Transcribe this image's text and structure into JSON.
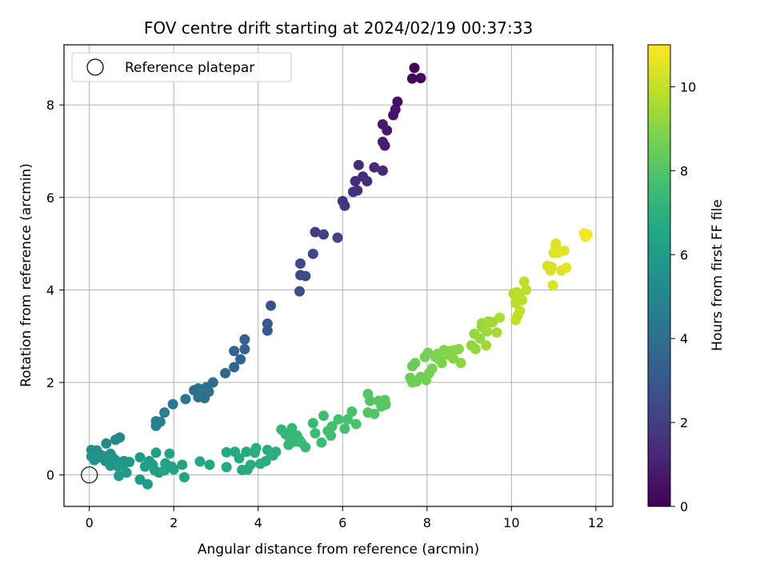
{
  "chart_data": {
    "type": "scatter",
    "title": "FOV centre drift starting at 2024/02/19 00:37:33",
    "xlabel": "Angular distance from reference (arcmin)",
    "ylabel": "Rotation from reference (arcmin)",
    "xlim": [
      -0.6,
      12.4
    ],
    "ylim": [
      -0.68,
      9.3
    ],
    "xticks": [
      "0",
      "2",
      "4",
      "6",
      "8",
      "10",
      "12"
    ],
    "yticks": [
      "0",
      "2",
      "4",
      "6",
      "8"
    ],
    "grid": true,
    "legend": {
      "placement": "top-left",
      "entries": [
        "Reference platepar"
      ]
    },
    "reference_point": {
      "x": 0,
      "y": 0
    },
    "colorbar": {
      "label": "Hours from first FF file",
      "range": [
        0,
        11
      ],
      "ticks": [
        "0",
        "2",
        "4",
        "6",
        "8",
        "10"
      ],
      "colormap": "viridis"
    },
    "points": [
      {
        "x": 7.7,
        "y": 8.8,
        "h": 0.1
      },
      {
        "x": 7.65,
        "y": 8.57,
        "h": 0.15
      },
      {
        "x": 7.85,
        "y": 8.58,
        "h": 0.2
      },
      {
        "x": 7.3,
        "y": 8.07,
        "h": 0.45
      },
      {
        "x": 7.25,
        "y": 7.9,
        "h": 0.55
      },
      {
        "x": 7.2,
        "y": 7.78,
        "h": 0.6
      },
      {
        "x": 6.95,
        "y": 7.58,
        "h": 0.75
      },
      {
        "x": 7.05,
        "y": 7.45,
        "h": 0.8
      },
      {
        "x": 6.95,
        "y": 7.2,
        "h": 0.9
      },
      {
        "x": 7.0,
        "y": 7.12,
        "h": 0.95
      },
      {
        "x": 6.75,
        "y": 6.65,
        "h": 1.2
      },
      {
        "x": 6.95,
        "y": 6.58,
        "h": 1.25
      },
      {
        "x": 6.38,
        "y": 6.7,
        "h": 1.3
      },
      {
        "x": 6.48,
        "y": 6.45,
        "h": 1.35
      },
      {
        "x": 6.3,
        "y": 6.35,
        "h": 1.4
      },
      {
        "x": 6.58,
        "y": 6.35,
        "h": 1.45
      },
      {
        "x": 6.25,
        "y": 6.12,
        "h": 1.5
      },
      {
        "x": 6.35,
        "y": 6.15,
        "h": 1.55
      },
      {
        "x": 6.0,
        "y": 5.92,
        "h": 1.65
      },
      {
        "x": 6.05,
        "y": 5.82,
        "h": 1.7
      },
      {
        "x": 5.35,
        "y": 5.25,
        "h": 2.0
      },
      {
        "x": 5.55,
        "y": 5.2,
        "h": 2.05
      },
      {
        "x": 5.88,
        "y": 5.13,
        "h": 2.1
      },
      {
        "x": 5.3,
        "y": 4.78,
        "h": 2.3
      },
      {
        "x": 5.0,
        "y": 4.57,
        "h": 2.4
      },
      {
        "x": 5.0,
        "y": 4.32,
        "h": 2.45
      },
      {
        "x": 5.12,
        "y": 4.3,
        "h": 2.5
      },
      {
        "x": 4.98,
        "y": 3.97,
        "h": 2.6
      },
      {
        "x": 4.3,
        "y": 3.66,
        "h": 2.85
      },
      {
        "x": 4.22,
        "y": 3.27,
        "h": 3.0
      },
      {
        "x": 4.22,
        "y": 3.12,
        "h": 3.05
      },
      {
        "x": 3.68,
        "y": 2.93,
        "h": 3.3
      },
      {
        "x": 3.43,
        "y": 2.68,
        "h": 3.4
      },
      {
        "x": 3.68,
        "y": 2.72,
        "h": 3.45
      },
      {
        "x": 3.58,
        "y": 2.5,
        "h": 3.5
      },
      {
        "x": 3.43,
        "y": 2.33,
        "h": 3.6
      },
      {
        "x": 3.22,
        "y": 2.2,
        "h": 3.7
      },
      {
        "x": 2.93,
        "y": 2.0,
        "h": 3.85
      },
      {
        "x": 2.78,
        "y": 1.9,
        "h": 3.9
      },
      {
        "x": 2.58,
        "y": 1.87,
        "h": 3.95
      },
      {
        "x": 2.68,
        "y": 1.85,
        "h": 4.0
      },
      {
        "x": 2.48,
        "y": 1.83,
        "h": 4.0
      },
      {
        "x": 2.68,
        "y": 1.75,
        "h": 4.05
      },
      {
        "x": 2.83,
        "y": 1.8,
        "h": 4.05
      },
      {
        "x": 2.58,
        "y": 1.68,
        "h": 4.1
      },
      {
        "x": 2.73,
        "y": 1.66,
        "h": 4.1
      },
      {
        "x": 2.28,
        "y": 1.64,
        "h": 4.25
      },
      {
        "x": 1.98,
        "y": 1.53,
        "h": 4.45
      },
      {
        "x": 1.78,
        "y": 1.35,
        "h": 4.6
      },
      {
        "x": 1.58,
        "y": 1.16,
        "h": 4.7
      },
      {
        "x": 1.68,
        "y": 1.15,
        "h": 4.75
      },
      {
        "x": 1.58,
        "y": 1.06,
        "h": 4.8
      },
      {
        "x": 0.72,
        "y": 0.81,
        "h": 5.1
      },
      {
        "x": 0.62,
        "y": 0.76,
        "h": 5.15
      },
      {
        "x": 0.4,
        "y": 0.68,
        "h": 5.25
      },
      {
        "x": 0.05,
        "y": 0.54,
        "h": 5.35
      },
      {
        "x": 0.18,
        "y": 0.53,
        "h": 5.4
      },
      {
        "x": 0.1,
        "y": 0.45,
        "h": 5.45
      },
      {
        "x": 0.3,
        "y": 0.42,
        "h": 5.5
      },
      {
        "x": 0.22,
        "y": 0.38,
        "h": 5.5
      },
      {
        "x": 0.05,
        "y": 0.4,
        "h": 5.55
      },
      {
        "x": 0.12,
        "y": 0.32,
        "h": 5.55
      },
      {
        "x": 0.5,
        "y": 0.46,
        "h": 5.6
      },
      {
        "x": 0.55,
        "y": 0.38,
        "h": 5.6
      },
      {
        "x": 0.38,
        "y": 0.3,
        "h": 5.65
      },
      {
        "x": 0.62,
        "y": 0.32,
        "h": 5.7
      },
      {
        "x": 0.82,
        "y": 0.3,
        "h": 5.75
      },
      {
        "x": 0.95,
        "y": 0.28,
        "h": 5.8
      },
      {
        "x": 0.8,
        "y": 0.22,
        "h": 5.85
      },
      {
        "x": 0.68,
        "y": 0.18,
        "h": 5.85
      },
      {
        "x": 0.5,
        "y": 0.2,
        "h": 5.9
      },
      {
        "x": 1.2,
        "y": 0.38,
        "h": 5.9
      },
      {
        "x": 0.7,
        "y": -0.02,
        "h": 5.95
      },
      {
        "x": 0.88,
        "y": 0.05,
        "h": 5.95
      },
      {
        "x": 1.2,
        "y": -0.1,
        "h": 6.0
      },
      {
        "x": 1.38,
        "y": -0.2,
        "h": 6.05
      },
      {
        "x": 1.42,
        "y": 0.3,
        "h": 6.1
      },
      {
        "x": 1.5,
        "y": 0.22,
        "h": 6.1
      },
      {
        "x": 1.58,
        "y": 0.48,
        "h": 6.15
      },
      {
        "x": 1.32,
        "y": 0.18,
        "h": 6.15
      },
      {
        "x": 1.55,
        "y": 0.1,
        "h": 6.2
      },
      {
        "x": 1.65,
        "y": 0.05,
        "h": 6.2
      },
      {
        "x": 1.8,
        "y": 0.25,
        "h": 6.25
      },
      {
        "x": 1.9,
        "y": 0.46,
        "h": 6.3
      },
      {
        "x": 1.95,
        "y": 0.18,
        "h": 6.3
      },
      {
        "x": 1.78,
        "y": 0.1,
        "h": 6.35
      },
      {
        "x": 2.0,
        "y": 0.12,
        "h": 6.35
      },
      {
        "x": 2.2,
        "y": 0.22,
        "h": 6.4
      },
      {
        "x": 2.25,
        "y": -0.05,
        "h": 6.45
      },
      {
        "x": 2.62,
        "y": 0.29,
        "h": 6.5
      },
      {
        "x": 2.85,
        "y": 0.22,
        "h": 6.55
      },
      {
        "x": 3.25,
        "y": 0.17,
        "h": 6.6
      },
      {
        "x": 3.25,
        "y": 0.49,
        "h": 6.65
      },
      {
        "x": 3.45,
        "y": 0.5,
        "h": 6.65
      },
      {
        "x": 3.55,
        "y": 0.36,
        "h": 6.7
      },
      {
        "x": 3.62,
        "y": 0.11,
        "h": 6.7
      },
      {
        "x": 3.75,
        "y": 0.12,
        "h": 6.75
      },
      {
        "x": 3.72,
        "y": 0.5,
        "h": 6.75
      },
      {
        "x": 3.82,
        "y": 0.22,
        "h": 6.8
      },
      {
        "x": 3.92,
        "y": 0.48,
        "h": 6.8
      },
      {
        "x": 3.95,
        "y": 0.58,
        "h": 6.85
      },
      {
        "x": 4.05,
        "y": 0.24,
        "h": 6.85
      },
      {
        "x": 4.18,
        "y": 0.3,
        "h": 6.9
      },
      {
        "x": 4.22,
        "y": 0.54,
        "h": 6.9
      },
      {
        "x": 4.35,
        "y": 0.42,
        "h": 6.95
      },
      {
        "x": 4.42,
        "y": 0.5,
        "h": 7.0
      },
      {
        "x": 4.3,
        "y": 0.45,
        "h": 7.0
      },
      {
        "x": 4.55,
        "y": 0.98,
        "h": 7.15
      },
      {
        "x": 4.65,
        "y": 0.88,
        "h": 7.2
      },
      {
        "x": 4.75,
        "y": 0.8,
        "h": 7.2
      },
      {
        "x": 4.8,
        "y": 1.01,
        "h": 7.25
      },
      {
        "x": 4.72,
        "y": 0.65,
        "h": 7.25
      },
      {
        "x": 4.88,
        "y": 0.72,
        "h": 7.3
      },
      {
        "x": 4.92,
        "y": 0.85,
        "h": 7.3
      },
      {
        "x": 5.02,
        "y": 0.7,
        "h": 7.35
      },
      {
        "x": 5.12,
        "y": 0.6,
        "h": 7.35
      },
      {
        "x": 4.98,
        "y": 0.75,
        "h": 7.4
      },
      {
        "x": 5.3,
        "y": 1.12,
        "h": 7.45
      },
      {
        "x": 5.35,
        "y": 0.9,
        "h": 7.5
      },
      {
        "x": 5.55,
        "y": 1.28,
        "h": 7.55
      },
      {
        "x": 5.5,
        "y": 0.7,
        "h": 7.55
      },
      {
        "x": 5.65,
        "y": 0.95,
        "h": 7.6
      },
      {
        "x": 5.75,
        "y": 1.05,
        "h": 7.6
      },
      {
        "x": 5.72,
        "y": 0.85,
        "h": 7.65
      },
      {
        "x": 5.9,
        "y": 1.2,
        "h": 7.7
      },
      {
        "x": 6.05,
        "y": 1.0,
        "h": 7.75
      },
      {
        "x": 6.12,
        "y": 1.2,
        "h": 7.75
      },
      {
        "x": 6.22,
        "y": 1.37,
        "h": 7.8
      },
      {
        "x": 6.32,
        "y": 1.1,
        "h": 7.85
      },
      {
        "x": 6.6,
        "y": 1.75,
        "h": 8.0
      },
      {
        "x": 6.65,
        "y": 1.6,
        "h": 8.0
      },
      {
        "x": 6.6,
        "y": 1.35,
        "h": 8.05
      },
      {
        "x": 6.75,
        "y": 1.32,
        "h": 8.05
      },
      {
        "x": 6.85,
        "y": 1.6,
        "h": 8.1
      },
      {
        "x": 6.92,
        "y": 1.48,
        "h": 8.1
      },
      {
        "x": 7.0,
        "y": 1.62,
        "h": 8.15
      },
      {
        "x": 7.02,
        "y": 1.52,
        "h": 8.15
      },
      {
        "x": 7.65,
        "y": 2.35,
        "h": 8.5
      },
      {
        "x": 7.72,
        "y": 2.42,
        "h": 8.5
      },
      {
        "x": 7.6,
        "y": 2.1,
        "h": 8.55
      },
      {
        "x": 7.65,
        "y": 2.0,
        "h": 8.55
      },
      {
        "x": 7.75,
        "y": 2.02,
        "h": 8.6
      },
      {
        "x": 7.85,
        "y": 2.12,
        "h": 8.6
      },
      {
        "x": 7.95,
        "y": 2.55,
        "h": 8.65
      },
      {
        "x": 7.98,
        "y": 2.05,
        "h": 8.65
      },
      {
        "x": 8.05,
        "y": 2.2,
        "h": 8.7
      },
      {
        "x": 8.02,
        "y": 2.64,
        "h": 8.7
      },
      {
        "x": 8.12,
        "y": 2.3,
        "h": 8.75
      },
      {
        "x": 8.2,
        "y": 2.55,
        "h": 8.8
      },
      {
        "x": 8.3,
        "y": 2.48,
        "h": 8.85
      },
      {
        "x": 8.25,
        "y": 2.62,
        "h": 8.85
      },
      {
        "x": 8.4,
        "y": 2.7,
        "h": 8.9
      },
      {
        "x": 8.35,
        "y": 2.42,
        "h": 8.9
      },
      {
        "x": 8.5,
        "y": 2.6,
        "h": 8.95
      },
      {
        "x": 8.55,
        "y": 2.68,
        "h": 8.95
      },
      {
        "x": 8.62,
        "y": 2.52,
        "h": 9.0
      },
      {
        "x": 8.65,
        "y": 2.7,
        "h": 9.0
      },
      {
        "x": 8.75,
        "y": 2.72,
        "h": 9.05
      },
      {
        "x": 8.8,
        "y": 2.42,
        "h": 9.1
      },
      {
        "x": 9.05,
        "y": 2.8,
        "h": 9.2
      },
      {
        "x": 9.12,
        "y": 3.05,
        "h": 9.25
      },
      {
        "x": 9.15,
        "y": 2.72,
        "h": 9.25
      },
      {
        "x": 9.25,
        "y": 2.95,
        "h": 9.3
      },
      {
        "x": 9.3,
        "y": 3.2,
        "h": 9.3
      },
      {
        "x": 9.3,
        "y": 3.28,
        "h": 9.35
      },
      {
        "x": 9.38,
        "y": 3.15,
        "h": 9.35
      },
      {
        "x": 9.42,
        "y": 3.1,
        "h": 9.4
      },
      {
        "x": 9.45,
        "y": 3.32,
        "h": 9.4
      },
      {
        "x": 9.55,
        "y": 3.3,
        "h": 9.45
      },
      {
        "x": 9.4,
        "y": 2.8,
        "h": 9.45
      },
      {
        "x": 9.65,
        "y": 3.08,
        "h": 9.5
      },
      {
        "x": 9.72,
        "y": 3.4,
        "h": 9.55
      },
      {
        "x": 10.05,
        "y": 3.92,
        "h": 9.75
      },
      {
        "x": 10.12,
        "y": 3.95,
        "h": 9.8
      },
      {
        "x": 10.1,
        "y": 3.72,
        "h": 9.8
      },
      {
        "x": 10.18,
        "y": 3.9,
        "h": 9.85
      },
      {
        "x": 10.25,
        "y": 3.78,
        "h": 9.85
      },
      {
        "x": 10.3,
        "y": 4.18,
        "h": 9.9
      },
      {
        "x": 10.35,
        "y": 4.0,
        "h": 9.9
      },
      {
        "x": 10.2,
        "y": 3.55,
        "h": 9.95
      },
      {
        "x": 10.15,
        "y": 3.45,
        "h": 9.95
      },
      {
        "x": 10.1,
        "y": 3.35,
        "h": 10.0
      },
      {
        "x": 10.85,
        "y": 4.52,
        "h": 10.3
      },
      {
        "x": 10.92,
        "y": 4.42,
        "h": 10.35
      },
      {
        "x": 10.95,
        "y": 4.5,
        "h": 10.35
      },
      {
        "x": 10.98,
        "y": 4.1,
        "h": 10.4
      },
      {
        "x": 11.0,
        "y": 4.8,
        "h": 10.4
      },
      {
        "x": 11.05,
        "y": 4.95,
        "h": 10.45
      },
      {
        "x": 11.05,
        "y": 5.0,
        "h": 10.45
      },
      {
        "x": 11.1,
        "y": 4.8,
        "h": 10.5
      },
      {
        "x": 11.18,
        "y": 4.42,
        "h": 10.5
      },
      {
        "x": 11.25,
        "y": 4.85,
        "h": 10.55
      },
      {
        "x": 11.3,
        "y": 4.48,
        "h": 10.55
      },
      {
        "x": 11.72,
        "y": 5.22,
        "h": 10.8
      },
      {
        "x": 11.75,
        "y": 5.15,
        "h": 10.85
      },
      {
        "x": 11.8,
        "y": 5.2,
        "h": 10.9
      }
    ]
  }
}
